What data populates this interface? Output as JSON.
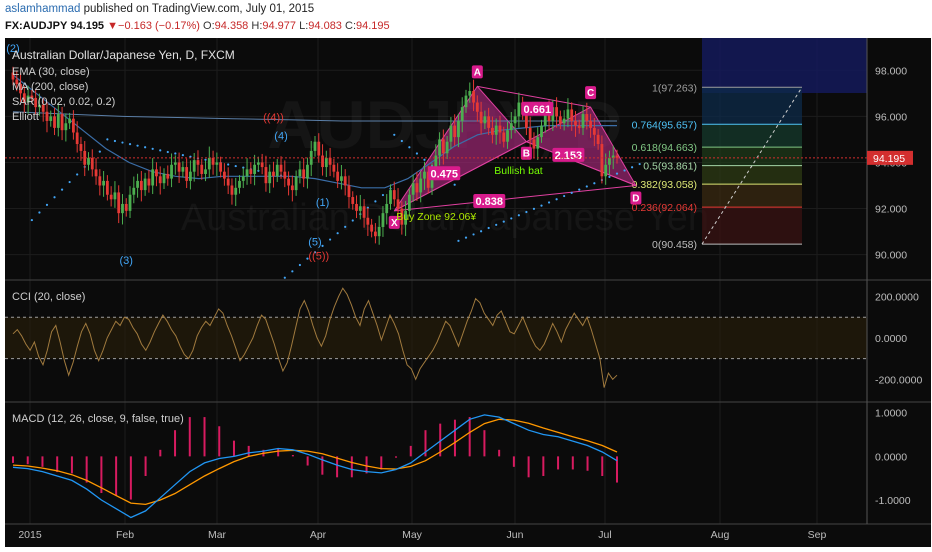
{
  "header": {
    "author": "aslamhammad",
    "published": "published on TradingView.com, July 01, 2015",
    "symbol": "FX:AUDJPY",
    "last": "94.195",
    "change": "−0.163 (−0.17%)",
    "o_label": "O:",
    "o": "94.358",
    "h_label": "H:",
    "h": "94.977",
    "l_label": "L:",
    "l": "94.083",
    "c_label": "C:",
    "c": "94.195"
  },
  "main": {
    "title": "Australian Dollar/Japanese Yen, D, FXCM",
    "indicators": [
      "EMA (30, close)",
      "MA (200, close)",
      "SAR (0.02, 0.02, 0.2)",
      "Elliott"
    ],
    "watermark": [
      "AUDJPY, D",
      "Australian Dollar/Japanese Yen"
    ],
    "price_tag": "94.195"
  },
  "colors": {
    "background": "#0b0b0b",
    "up_candle": "#4caf50",
    "down_candle": "#e53935",
    "pattern_fill": "#9c2774",
    "pattern_edge": "#e040a0",
    "ema": "#3b6ea8",
    "ma200": "#5b7fa8",
    "sar": "#42a5f5",
    "cci": "#a07a3e",
    "macd": "#2196f3",
    "signal": "#ff9800",
    "hist": "#d81b60",
    "elliott_blue": "#42a5f5",
    "elliott_red": "#e53935",
    "pattern_label": "#ffffff",
    "bullish_text": "#76ff03",
    "buy_zone_text": "#aeea00",
    "price_line": "#d32f2f",
    "axis_text": "#bdbdbd"
  },
  "chart_data": [
    {
      "type": "line",
      "panel": "price",
      "xlabel": "",
      "ylabel": "",
      "time_ticks": [
        "2015",
        "Feb",
        "Mar",
        "Apr",
        "May",
        "Jun",
        "Jul",
        "Aug",
        "Sep"
      ],
      "ylim": [
        88.9,
        99.4
      ],
      "y_ticks": [
        "98.000",
        "96.000",
        "94.000",
        "92.000",
        "90.000"
      ],
      "close": [
        97.6,
        97.4,
        97.0,
        96.6,
        96.9,
        96.8,
        96.4,
        96.5,
        96.2,
        95.8,
        96.0,
        95.5,
        96.1,
        95.4,
        95.7,
        95.9,
        95.3,
        94.8,
        94.5,
        93.9,
        94.2,
        93.7,
        93.4,
        93.0,
        93.2,
        92.6,
        92.4,
        92.7,
        91.8,
        92.2,
        91.9,
        92.6,
        92.9,
        93.2,
        92.8,
        93.3,
        93.0,
        93.7,
        93.4,
        93.1,
        93.5,
        93.3,
        93.9,
        94.0,
        93.6,
        93.8,
        93.2,
        93.6,
        94.1,
        93.9,
        93.5,
        93.7,
        94.2,
        93.9,
        94.0,
        93.6,
        93.3,
        93.0,
        92.6,
        92.9,
        93.2,
        93.4,
        93.7,
        93.5,
        93.9,
        94.0,
        93.8,
        93.1,
        93.6,
        93.4,
        93.9,
        93.6,
        93.3,
        93.0,
        92.8,
        93.4,
        93.7,
        93.3,
        93.9,
        94.5,
        94.9,
        94.3,
        93.8,
        94.2,
        93.9,
        93.6,
        93.2,
        93.4,
        93.0,
        92.5,
        92.2,
        91.9,
        92.1,
        91.6,
        91.3,
        91.0,
        90.8,
        91.2,
        91.8,
        92.2,
        92.8,
        92.4,
        92.0,
        91.3,
        91.9,
        92.6,
        93.1,
        92.7,
        93.3,
        93.6,
        92.9,
        93.6,
        94.3,
        95.0,
        94.4,
        94.9,
        95.6,
        95.1,
        95.8,
        96.4,
        96.9,
        97.1,
        96.6,
        96.2,
        95.7,
        96.0,
        95.5,
        95.2,
        95.6,
        95.3,
        94.9,
        95.4,
        95.7,
        96.0,
        96.6,
        96.1,
        95.5,
        95.0,
        94.6,
        95.1,
        95.6,
        96.2,
        95.8,
        96.4,
        96.0,
        95.7,
        95.9,
        96.3,
        95.8,
        95.6,
        95.5,
        96.1,
        95.8,
        95.5,
        95.2,
        94.8,
        93.4,
        93.9,
        94.2,
        94.3,
        94.2
      ],
      "ema30": [
        97.8,
        97.0,
        96.2,
        95.4,
        94.6,
        94.0,
        93.6,
        93.4,
        93.3,
        93.4,
        93.4,
        93.4,
        93.4,
        93.3,
        93.1,
        92.9,
        92.9,
        93.3,
        94.0,
        94.7,
        95.2,
        95.4,
        95.5,
        95.6,
        95.6,
        95.6,
        95.6
      ],
      "ma200": [
        96.2,
        96.1,
        96.0,
        95.95,
        95.9,
        95.85,
        95.8,
        95.8,
        95.8,
        95.8,
        95.8,
        95.8
      ],
      "sar_segments": [
        {
          "from": 5,
          "to": 25,
          "start": 91.5,
          "end": 94.8
        },
        {
          "from": 25,
          "to": 72,
          "start": 95.0,
          "end": 93.4
        },
        {
          "from": 72,
          "to": 101,
          "start": 89.0,
          "end": 93.0
        },
        {
          "from": 101,
          "to": 118,
          "start": 95.2,
          "end": 92.9
        },
        {
          "from": 118,
          "to": 167,
          "start": 90.6,
          "end": 94.0
        }
      ],
      "elliott": [
        {
          "label": "(3)",
          "color": "blue",
          "bar": 30,
          "price": 89.6
        },
        {
          "label": "(4)",
          "color": "blue",
          "bar": 71,
          "price": 95.0
        },
        {
          "label": "((4))",
          "color": "red",
          "bar": 69,
          "price": 95.8
        },
        {
          "label": "(1)",
          "color": "blue",
          "bar": 82,
          "price": 92.1
        },
        {
          "label": "(5)",
          "color": "blue",
          "bar": 80,
          "price": 90.4
        },
        {
          "label": "((5))",
          "color": "red",
          "bar": 81,
          "price": 89.8
        },
        {
          "label": "(2)",
          "color": "blue",
          "bar": 0,
          "price": 98.8
        }
      ],
      "harmonic_pattern": {
        "name": "Bullish bat",
        "points": [
          {
            "label": "X",
            "bar": 101,
            "price": 91.9
          },
          {
            "label": "A",
            "bar": 123,
            "price": 97.3
          },
          {
            "label": "B",
            "bar": 136,
            "price": 94.9
          },
          {
            "label": "C",
            "bar": 153,
            "price": 96.4
          },
          {
            "label": "D",
            "bar": 165,
            "price": 93.0
          }
        ],
        "ratios": [
          "0.475",
          "0.661",
          "2.153",
          "0.838"
        ],
        "buy_zone": "Buy Zone 92.06¥"
      },
      "fib_levels": [
        {
          "label": "1(97.263)",
          "value": 97.263,
          "color": "#9e9e9e"
        },
        {
          "label": "0.764(95.657)",
          "value": 95.657,
          "color": "#4fc3f7"
        },
        {
          "label": "0.618(94.663)",
          "value": 94.663,
          "color": "#81c784"
        },
        {
          "label": "0.5(93.861)",
          "value": 93.861,
          "color": "#a5d6a7"
        },
        {
          "label": "0.382(93.058)",
          "value": 93.058,
          "color": "#dce775"
        },
        {
          "label": "0.236(92.064)",
          "value": 92.064,
          "color": "#e53935"
        },
        {
          "label": "0(90.458)",
          "value": 90.458,
          "color": "#bdbdbd"
        }
      ]
    },
    {
      "type": "line",
      "panel": "cci",
      "title": "CCI (20, close)",
      "ylim": [
        -300,
        270
      ],
      "y_ticks": [
        "200.0000",
        "0.0000",
        "-200.0000"
      ],
      "bands": [
        100,
        -100
      ],
      "values": [
        20,
        40,
        10,
        -30,
        -60,
        -20,
        -90,
        -130,
        -60,
        30,
        60,
        -20,
        -110,
        -180,
        -120,
        -40,
        30,
        70,
        20,
        -60,
        -110,
        -60,
        0,
        40,
        80,
        60,
        100,
        90,
        50,
        20,
        -30,
        -60,
        -20,
        30,
        70,
        110,
        80,
        40,
        10,
        -40,
        -80,
        -100,
        -60,
        10,
        50,
        80,
        60,
        100,
        140,
        120,
        60,
        10,
        -50,
        -110,
        -80,
        -40,
        0,
        60,
        110,
        90,
        30,
        -30,
        -100,
        -160,
        -120,
        -40,
        50,
        140,
        180,
        130,
        60,
        0,
        -40,
        10,
        90,
        150,
        200,
        240,
        210,
        160,
        100,
        60,
        140,
        180,
        120,
        60,
        -10,
        50,
        110,
        70,
        20,
        -60,
        -130,
        -150,
        -200,
        -150,
        -120,
        -90,
        -60,
        -20,
        30,
        80,
        60,
        10,
        -40,
        20,
        80,
        130,
        190,
        170,
        120,
        90,
        60,
        110,
        130,
        80,
        30,
        20,
        60,
        100,
        50,
        0,
        -40,
        -60,
        -30,
        20,
        70,
        30,
        -20,
        40,
        80,
        120,
        90,
        60,
        100,
        40,
        -30,
        -100,
        -240,
        -170,
        -200,
        -180
      ]
    },
    {
      "type": "line",
      "panel": "macd",
      "title": "MACD (12, 26, close, 9, false, true)",
      "ylim": [
        -1.55,
        1.2
      ],
      "y_ticks": [
        "1.0000",
        "0.0000",
        "-1.0000"
      ],
      "macd": [
        -0.25,
        -0.28,
        -0.35,
        -0.45,
        -0.55,
        -0.75,
        -1.0,
        -1.2,
        -1.4,
        -1.25,
        -0.95,
        -0.65,
        -0.35,
        -0.15,
        -0.05,
        0.0,
        0.08,
        0.12,
        0.18,
        0.15,
        0.05,
        -0.08,
        -0.2,
        -0.3,
        -0.35,
        -0.38,
        -0.3,
        -0.15,
        0.1,
        0.35,
        0.6,
        0.85,
        0.95,
        0.9,
        0.75,
        0.6,
        0.5,
        0.45,
        0.35,
        0.25,
        0.1,
        -0.1
      ],
      "signal": [
        -0.2,
        -0.22,
        -0.27,
        -0.33,
        -0.42,
        -0.55,
        -0.72,
        -0.9,
        -1.07,
        -1.1,
        -1.0,
        -0.85,
        -0.65,
        -0.45,
        -0.28,
        -0.12,
        0.0,
        0.07,
        0.12,
        0.14,
        0.12,
        0.06,
        -0.04,
        -0.14,
        -0.22,
        -0.28,
        -0.29,
        -0.23,
        -0.1,
        0.1,
        0.32,
        0.55,
        0.75,
        0.85,
        0.83,
        0.76,
        0.65,
        0.55,
        0.45,
        0.36,
        0.25,
        0.1
      ]
    }
  ]
}
